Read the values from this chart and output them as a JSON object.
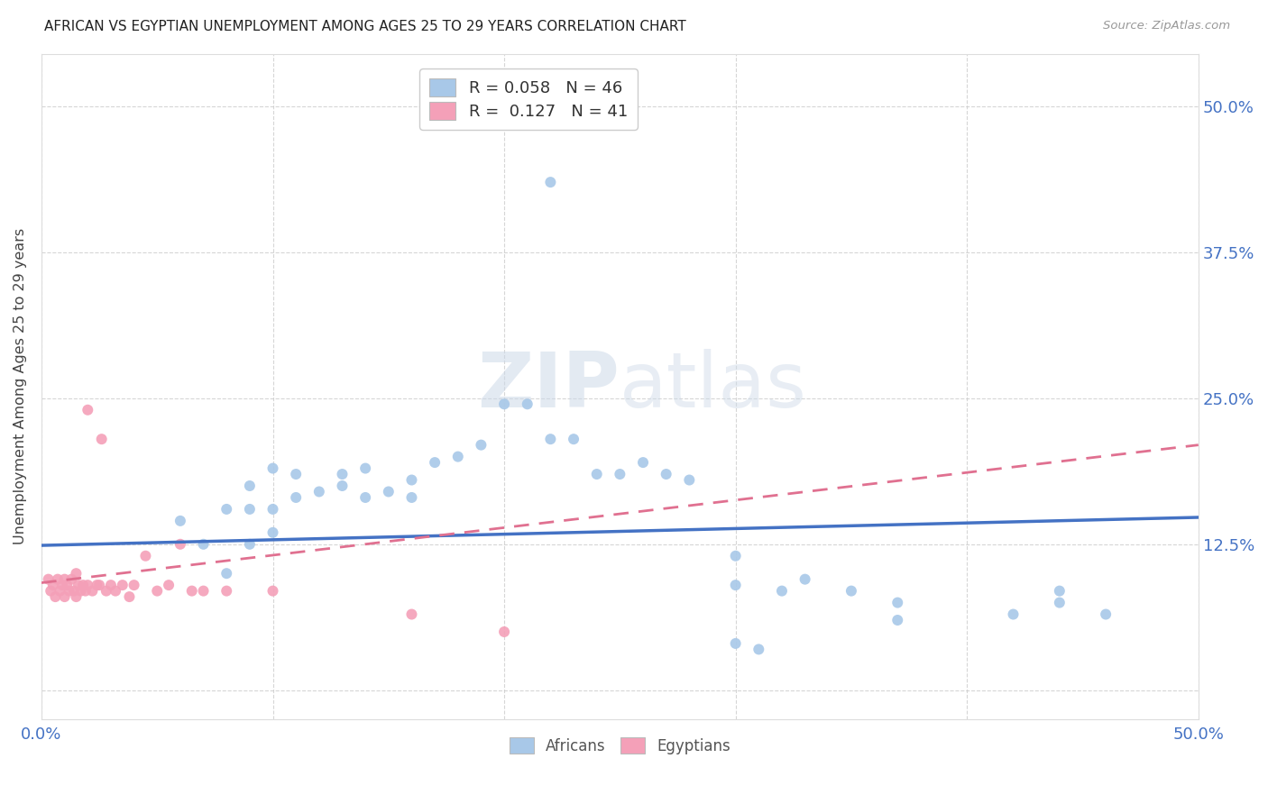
{
  "title": "AFRICAN VS EGYPTIAN UNEMPLOYMENT AMONG AGES 25 TO 29 YEARS CORRELATION CHART",
  "source": "Source: ZipAtlas.com",
  "ylabel": "Unemployment Among Ages 25 to 29 years",
  "xlim": [
    0.0,
    0.5
  ],
  "ylim": [
    -0.025,
    0.545
  ],
  "r_african": 0.058,
  "n_african": 46,
  "r_egyptian": 0.127,
  "n_egyptian": 41,
  "african_color": "#a8c8e8",
  "egyptian_color": "#f4a0b8",
  "trend_african_color": "#4472c4",
  "trend_egyptian_color": "#e07090",
  "background_color": "#ffffff",
  "africans_x": [
    0.22,
    0.06,
    0.07,
    0.08,
    0.09,
    0.09,
    0.1,
    0.1,
    0.11,
    0.12,
    0.13,
    0.13,
    0.14,
    0.15,
    0.16,
    0.17,
    0.18,
    0.2,
    0.21,
    0.22,
    0.24,
    0.25,
    0.27,
    0.28,
    0.3,
    0.3,
    0.32,
    0.33,
    0.35,
    0.37,
    0.37,
    0.42,
    0.44,
    0.44,
    0.46,
    0.3,
    0.31,
    0.08,
    0.09,
    0.1,
    0.11,
    0.14,
    0.16,
    0.19,
    0.23,
    0.26
  ],
  "africans_y": [
    0.435,
    0.145,
    0.125,
    0.155,
    0.155,
    0.175,
    0.135,
    0.155,
    0.165,
    0.17,
    0.175,
    0.185,
    0.165,
    0.17,
    0.165,
    0.195,
    0.2,
    0.245,
    0.245,
    0.215,
    0.185,
    0.185,
    0.185,
    0.18,
    0.115,
    0.09,
    0.085,
    0.095,
    0.085,
    0.075,
    0.06,
    0.065,
    0.075,
    0.085,
    0.065,
    0.04,
    0.035,
    0.1,
    0.125,
    0.19,
    0.185,
    0.19,
    0.18,
    0.21,
    0.215,
    0.195
  ],
  "egyptians_x": [
    0.003,
    0.004,
    0.005,
    0.006,
    0.007,
    0.008,
    0.009,
    0.01,
    0.01,
    0.011,
    0.012,
    0.013,
    0.014,
    0.015,
    0.015,
    0.016,
    0.017,
    0.018,
    0.019,
    0.02,
    0.02,
    0.022,
    0.024,
    0.025,
    0.026,
    0.028,
    0.03,
    0.032,
    0.035,
    0.038,
    0.04,
    0.045,
    0.05,
    0.055,
    0.06,
    0.065,
    0.07,
    0.08,
    0.1,
    0.16,
    0.2
  ],
  "egyptians_y": [
    0.095,
    0.085,
    0.09,
    0.08,
    0.095,
    0.085,
    0.09,
    0.08,
    0.095,
    0.09,
    0.085,
    0.095,
    0.085,
    0.08,
    0.1,
    0.09,
    0.085,
    0.09,
    0.085,
    0.09,
    0.24,
    0.085,
    0.09,
    0.09,
    0.215,
    0.085,
    0.09,
    0.085,
    0.09,
    0.08,
    0.09,
    0.115,
    0.085,
    0.09,
    0.125,
    0.085,
    0.085,
    0.085,
    0.085,
    0.065,
    0.05
  ]
}
